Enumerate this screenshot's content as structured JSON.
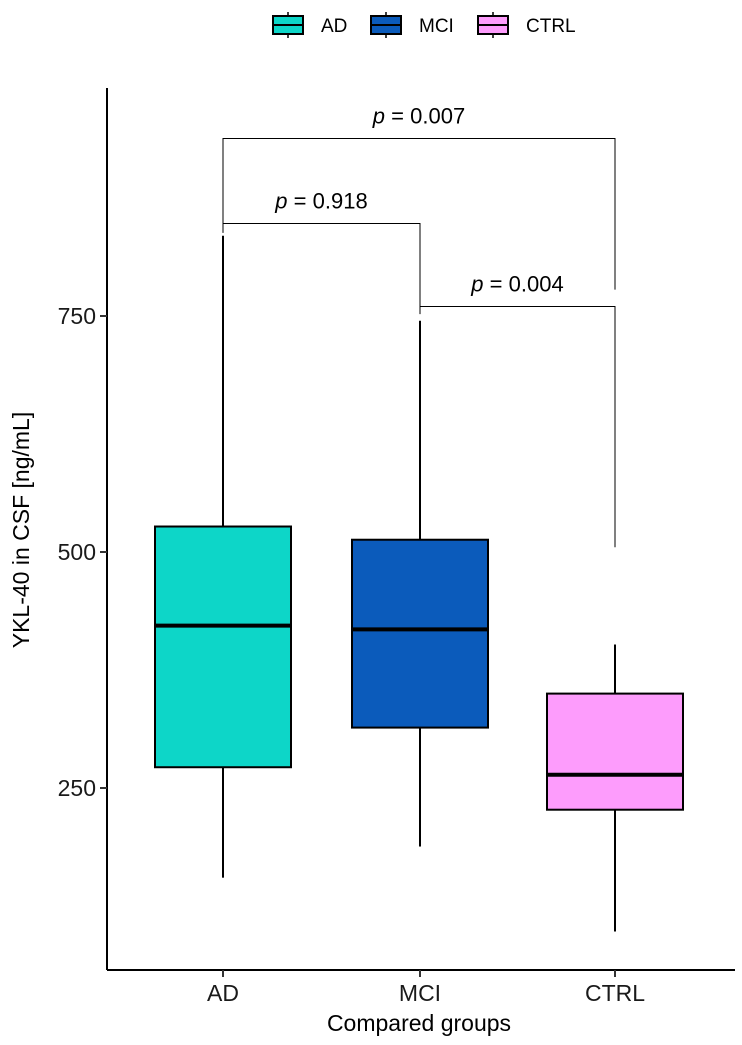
{
  "chart_data": {
    "type": "box",
    "title": "",
    "xlabel": "Compared groups",
    "ylabel": "YKL-40 in CSF [ng/mL]",
    "ylim": [
      70,
      1000
    ],
    "yticks": [
      250,
      500,
      750
    ],
    "categories": [
      "AD",
      "MCI",
      "CTRL"
    ],
    "boxes": [
      {
        "name": "AD",
        "color": "#0dd6c8",
        "whisker_low": 155,
        "q1": 272,
        "median": 422,
        "q3": 527,
        "whisker_high": 835
      },
      {
        "name": "MCI",
        "color": "#0b5bbb",
        "whisker_low": 188,
        "q1": 314,
        "median": 418,
        "q3": 513,
        "whisker_high": 745
      },
      {
        "name": "CTRL",
        "color": "#fd9cfc",
        "whisker_low": 98,
        "q1": 227,
        "median": 264,
        "q3": 350,
        "whisker_high": 402
      }
    ],
    "legend": {
      "position": "top",
      "entries": [
        {
          "label": "AD",
          "color": "#0dd6c8"
        },
        {
          "label": "MCI",
          "color": "#0b5bbb"
        },
        {
          "label": "CTRL",
          "color": "#fd9cfc"
        }
      ]
    },
    "annotations": [
      {
        "from": "AD",
        "to": "CTRL",
        "p_label": "p",
        "p_value": " = 0.007",
        "bracket_y": 938,
        "left_end": 842,
        "right_end": 778
      },
      {
        "from": "AD",
        "to": "MCI",
        "p_label": "p",
        "p_value": " = 0.918",
        "bracket_y": 848,
        "left_end": 838,
        "right_end": 757
      },
      {
        "from": "MCI",
        "to": "CTRL",
        "p_label": "p",
        "p_value": " = 0.004",
        "bracket_y": 760,
        "left_end": 752,
        "right_end": 505
      }
    ]
  }
}
